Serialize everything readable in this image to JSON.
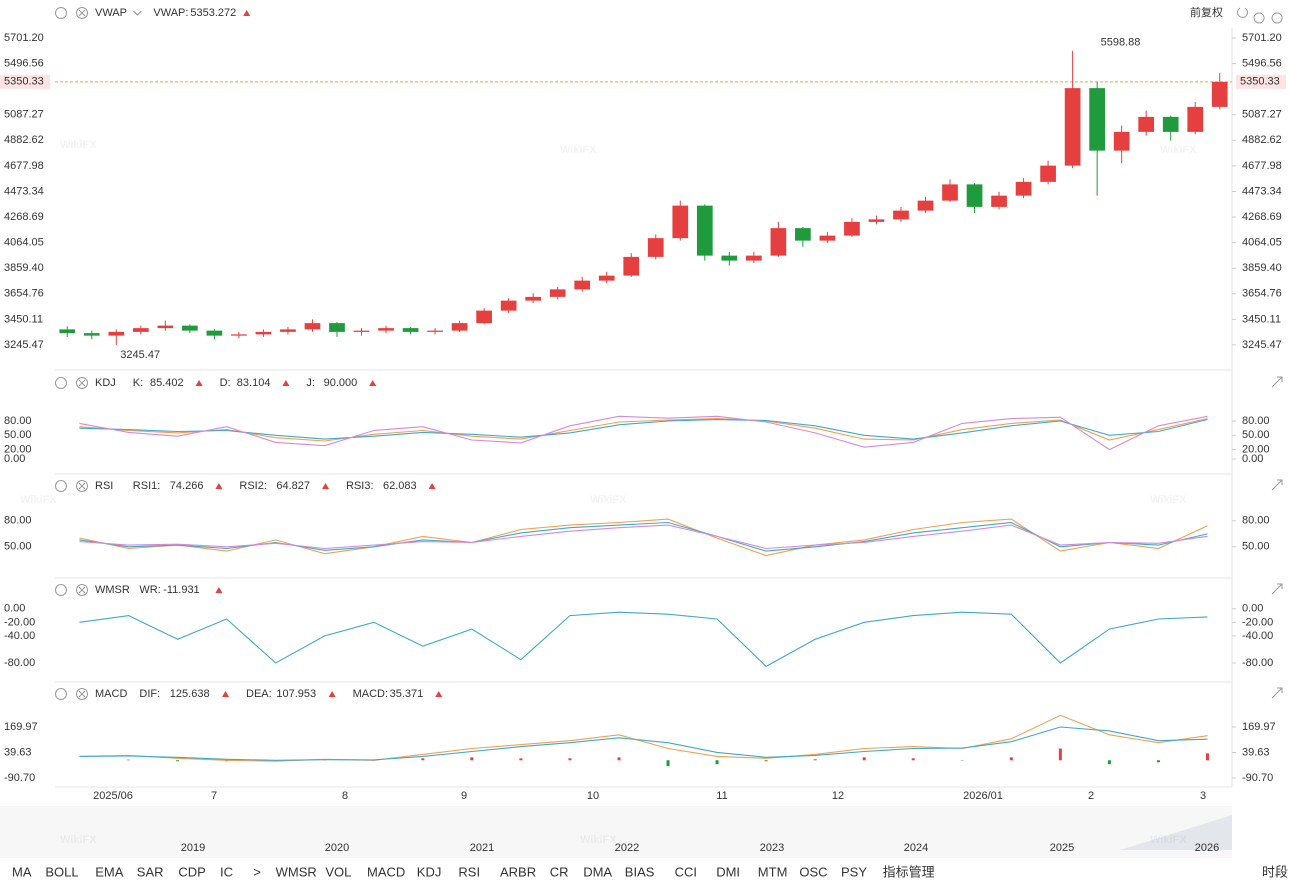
{
  "chart_data": [
    {
      "type": "candlestick",
      "title": "VWAP",
      "indicator": {
        "label": "VWAP:",
        "value": "5353.272"
      },
      "adjust": "前复权",
      "ylim": [
        3085,
        5781
      ],
      "yticks": [
        {
          "value": 5701.2,
          "label": "5701.20"
        },
        {
          "value": 5496.56,
          "label": "5496.56"
        },
        {
          "value": 5087.27,
          "label": "5087.27"
        },
        {
          "value": 4882.62,
          "label": "4882.62"
        },
        {
          "value": 4677.98,
          "label": "4677.98"
        },
        {
          "value": 4473.34,
          "label": "4473.34"
        },
        {
          "value": 4268.69,
          "label": "4268.69"
        },
        {
          "value": 4064.05,
          "label": "4064.05"
        },
        {
          "value": 3859.4,
          "label": "3859.40"
        },
        {
          "value": 3654.76,
          "label": "3654.76"
        },
        {
          "value": 3450.11,
          "label": "3450.11"
        },
        {
          "value": 3245.47,
          "label": "3245.47"
        }
      ],
      "last_price": 5350.33,
      "high_label": 5598.88,
      "low_label": 3245.47,
      "x_labels": [
        "2025/06",
        "7",
        "8",
        "9",
        "10",
        "11",
        "12",
        "2026/01",
        "2",
        "3"
      ],
      "up_color": "#e5403f",
      "down_color": "#1f9a3c",
      "open": [
        3370,
        3340,
        3320,
        3350,
        3380,
        3400,
        3360,
        3320,
        3330,
        3350,
        3370,
        3420,
        3350,
        3360,
        3380,
        3350,
        3360,
        3420,
        3520,
        3600,
        3630,
        3690,
        3760,
        3800,
        3950,
        4100,
        4360,
        3960,
        3920,
        3960,
        4180,
        4080,
        4120,
        4230,
        4250,
        4320,
        4400,
        4530,
        4350,
        4440,
        4550,
        4680,
        5300,
        4800,
        4950,
        5070,
        4950,
        5150
      ],
      "high": [
        3395,
        3360,
        3370,
        3400,
        3440,
        3410,
        3370,
        3350,
        3370,
        3390,
        3450,
        3430,
        3380,
        3400,
        3390,
        3380,
        3440,
        3540,
        3620,
        3660,
        3710,
        3790,
        3830,
        3980,
        4130,
        4400,
        4370,
        3990,
        3990,
        4230,
        4190,
        4150,
        4260,
        4280,
        4350,
        4430,
        4570,
        4540,
        4470,
        4580,
        4720,
        5598.88,
        5350,
        5000,
        5120,
        5080,
        5190,
        5420
      ],
      "low": [
        3310,
        3290,
        3245.47,
        3330,
        3360,
        3340,
        3290,
        3300,
        3310,
        3330,
        3350,
        3310,
        3320,
        3340,
        3330,
        3330,
        3350,
        3410,
        3500,
        3580,
        3610,
        3670,
        3740,
        3790,
        3930,
        4080,
        3920,
        3880,
        3900,
        3950,
        4030,
        4060,
        4110,
        4210,
        4230,
        4300,
        4390,
        4300,
        4330,
        4420,
        4530,
        4660,
        4440,
        4700,
        4920,
        4880,
        4930,
        5130
      ],
      "close": [
        3340,
        3320,
        3350,
        3380,
        3400,
        3360,
        3320,
        3330,
        3350,
        3370,
        3420,
        3350,
        3360,
        3380,
        3350,
        3360,
        3420,
        3520,
        3600,
        3630,
        3690,
        3760,
        3800,
        3950,
        4100,
        4360,
        3960,
        3920,
        3960,
        4180,
        4080,
        4120,
        4230,
        4250,
        4320,
        4400,
        4530,
        4350,
        4440,
        4550,
        4680,
        5300,
        4800,
        4950,
        5070,
        4950,
        5150,
        5350.33
      ]
    },
    {
      "type": "line",
      "title": "KDJ",
      "ylim": [
        -23,
        120
      ],
      "yticks": [
        {
          "value": 80,
          "label": "80.00"
        },
        {
          "value": 50,
          "label": "50.00"
        },
        {
          "value": 20,
          "label": "20.00"
        },
        {
          "value": 0,
          "label": "0.00"
        }
      ],
      "series": [
        {
          "name": "K:",
          "value_label": "85.402",
          "color": "#f0a050",
          "values": [
            68,
            60,
            55,
            62,
            45,
            38,
            52,
            60,
            48,
            42,
            60,
            78,
            82,
            85,
            80,
            65,
            42,
            40,
            62,
            75,
            82,
            40,
            62,
            85.402
          ]
        },
        {
          "name": "D:",
          "value_label": "83.104",
          "color": "#3fa9c9",
          "values": [
            65,
            62,
            58,
            60,
            50,
            42,
            48,
            56,
            52,
            46,
            55,
            72,
            80,
            83,
            81,
            70,
            50,
            42,
            55,
            70,
            80,
            50,
            58,
            83.104
          ]
        },
        {
          "name": "J:",
          "value_label": "90.000",
          "color": "#d58ad8",
          "values": [
            75,
            56,
            48,
            68,
            35,
            28,
            60,
            68,
            40,
            34,
            70,
            90,
            86,
            90,
            78,
            55,
            25,
            35,
            75,
            85,
            88,
            20,
            70,
            90
          ]
        }
      ]
    },
    {
      "type": "line",
      "title": "RSI",
      "ylim": [
        14,
        104
      ],
      "yticks": [
        {
          "value": 80,
          "label": "80.00"
        },
        {
          "value": 50,
          "label": "50.00"
        }
      ],
      "series": [
        {
          "name": "RSI1:",
          "value_label": "74.266",
          "color": "#f0a050",
          "values": [
            60,
            48,
            52,
            45,
            58,
            42,
            50,
            62,
            55,
            70,
            75,
            78,
            82,
            60,
            40,
            52,
            58,
            70,
            78,
            82,
            45,
            55,
            48,
            74.266
          ]
        },
        {
          "name": "RSI2:",
          "value_label": "64.827",
          "color": "#3fa9c9",
          "values": [
            58,
            50,
            52,
            48,
            55,
            46,
            50,
            58,
            55,
            66,
            72,
            75,
            78,
            62,
            45,
            50,
            56,
            66,
            72,
            78,
            50,
            55,
            52,
            64.827
          ]
        },
        {
          "name": "RSI3:",
          "value_label": "62.083",
          "color": "#d58ad8",
          "values": [
            56,
            52,
            53,
            50,
            54,
            48,
            52,
            56,
            55,
            62,
            68,
            72,
            75,
            62,
            48,
            52,
            55,
            62,
            68,
            75,
            52,
            55,
            54,
            62.083
          ]
        }
      ]
    },
    {
      "type": "line",
      "title": "WMSR",
      "ylim": [
        -105,
        10
      ],
      "yticks": [
        {
          "value": 0,
          "label": "0.00"
        },
        {
          "value": -20,
          "label": "-20.00"
        },
        {
          "value": -40,
          "label": "-40.00"
        },
        {
          "value": -80,
          "label": "-80.00"
        }
      ],
      "series": [
        {
          "name": "WR:",
          "value_label": "-11.931",
          "color": "#3fa9c9",
          "values": [
            -20,
            -10,
            -45,
            -15,
            -80,
            -40,
            -20,
            -55,
            -30,
            -75,
            -10,
            -5,
            -8,
            -15,
            -85,
            -45,
            -20,
            -10,
            -5,
            -8,
            -80,
            -30,
            -15,
            -11.931
          ]
        }
      ]
    },
    {
      "type": "macd",
      "title": "MACD",
      "ylim": [
        -152,
        257
      ],
      "yticks": [
        {
          "value": 169.97,
          "label": "169.97"
        },
        {
          "value": 39.63,
          "label": "39.63"
        },
        {
          "value": -90.7,
          "label": "-90.70"
        }
      ],
      "series": [
        {
          "name": "DIF:",
          "value_label": "125.638",
          "color": "#f0a050",
          "values": [
            20,
            25,
            10,
            0,
            -5,
            5,
            0,
            30,
            60,
            80,
            100,
            130,
            60,
            20,
            10,
            30,
            60,
            70,
            60,
            110,
            230,
            130,
            90,
            125.638
          ]
        },
        {
          "name": "DEA:",
          "value_label": "107.953",
          "color": "#3fa9c9",
          "values": [
            20,
            22,
            15,
            5,
            0,
            3,
            2,
            20,
            45,
            70,
            90,
            115,
            90,
            40,
            15,
            25,
            45,
            60,
            62,
            95,
            170,
            150,
            100,
            107.953
          ]
        }
      ],
      "histogram": {
        "name": "MACD:",
        "value_label": "35.371",
        "color": "#d58ad8",
        "values": [
          0,
          3,
          -5,
          -5,
          -5,
          2,
          -2,
          10,
          15,
          10,
          10,
          15,
          -30,
          -20,
          -5,
          5,
          15,
          10,
          -2,
          15,
          60,
          -20,
          -10,
          35.371
        ]
      }
    }
  ],
  "timeline": [
    "2019",
    "2020",
    "2021",
    "2022",
    "2023",
    "2024",
    "2025",
    "2026"
  ],
  "toolbar": [
    {
      "label": "MA",
      "active": false
    },
    {
      "label": "BOLL",
      "active": false
    },
    {
      "label": "EMA",
      "active": false
    },
    {
      "label": "SAR",
      "active": false
    },
    {
      "label": "CDP",
      "active": false
    },
    {
      "label": "IC",
      "active": false
    },
    {
      "label": ">",
      "active": false
    },
    {
      "label": "WMSR",
      "active": true
    },
    {
      "label": "VOL",
      "active": false
    },
    {
      "label": "MACD",
      "active": true
    },
    {
      "label": "KDJ",
      "active": true
    },
    {
      "label": "RSI",
      "active": true
    },
    {
      "label": "ARBR",
      "active": false
    },
    {
      "label": "CR",
      "active": false
    },
    {
      "label": "DMA",
      "active": false
    },
    {
      "label": "BIAS",
      "active": false
    },
    {
      "label": "CCI",
      "active": false
    },
    {
      "label": "DMI",
      "active": false
    },
    {
      "label": "MTM",
      "active": false
    },
    {
      "label": "OSC",
      "active": false
    },
    {
      "label": "PSY",
      "active": false
    },
    {
      "label": "指标管理",
      "active": true
    }
  ],
  "period": "时段",
  "watermark": "WikiFX"
}
